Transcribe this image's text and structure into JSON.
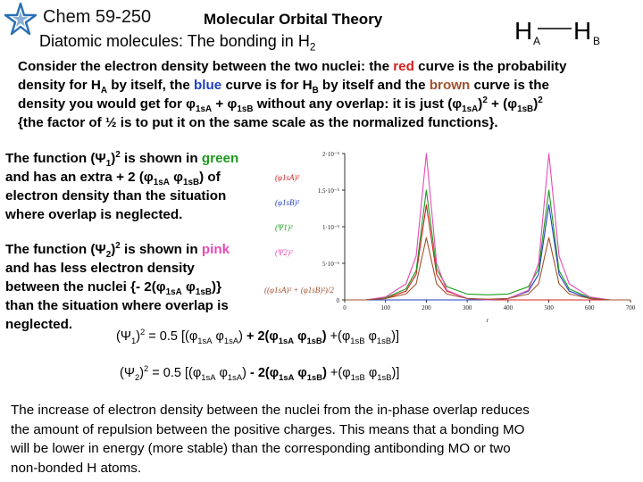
{
  "header": {
    "course": "Chem 59-250",
    "title": "Molecular Orbital Theory",
    "subtitle_main": "Diatomic molecules: The bonding in H",
    "subtitle_sub": "2",
    "hh_left": "H",
    "hh_left_sub": "A",
    "hh_right": "H",
    "hh_right_sub": "B"
  },
  "intro": {
    "l1a": "Consider the electron density between the two nuclei:  the ",
    "l1b": "red",
    "l1c": " curve is the probability",
    "l2a": "density for H",
    "l2b": "A",
    "l2c": " by itself, the ",
    "l2d": "blue",
    "l2e": " curve is for H",
    "l2f": "B",
    "l2g": " by itself and the ",
    "l2h": "brown",
    "l2i": " curve is the",
    "l3a": "density you would get for ",
    "l3b": "1sA",
    "l3c": " + ",
    "l3d": "1sB",
    "l3e": " without any overlap:  it is just (",
    "l3f": "1sA",
    "l3g": ")",
    "l3h": "2",
    "l3i": " + (",
    "l3j": "1sB",
    "l3k": ")",
    "l3l": "2",
    "l4": "{the factor of ½ is to put it on the same scale as the normalized functions}."
  },
  "psi1_text": {
    "l1a": "The function (",
    "l1b": "1",
    "l1c": ")",
    "l1d": "2",
    "l1e": " is shown in ",
    "l1f": "green",
    "l2a": "and has an extra + 2 (",
    "l2b": "1sA",
    "l2c": " ",
    "l2d": "1sB",
    "l2e": ") of",
    "l3": "electron density than the situation",
    "l4": "where overlap is neglected."
  },
  "psi2_text": {
    "l1a": "The function (",
    "l1b": "2",
    "l1c": ")",
    "l1d": "2",
    "l1e": " is shown in ",
    "l1f": "pink",
    "l2": "and has less electron density",
    "l3a": "between the nuclei {- 2(",
    "l3b": "1sA",
    "l3c": " ",
    "l3d": "1sB",
    "l3e": ")}",
    "l4": "than the situation where overlap is",
    "l5": "neglected."
  },
  "equations": {
    "eq1": {
      "a": "(",
      "b": "1",
      "c": ")",
      "d": "2",
      "e": " = 0.5 [(",
      "f": "1sA",
      "g": " ",
      "h": "1sA",
      "i": ") ",
      "j": "+ 2(",
      "k": "1sA",
      "l": " ",
      "m": "1sB",
      "n": ") ",
      "o": "+(",
      "p": "1sB",
      "q": " ",
      "r": "1sB",
      "s": ")]"
    },
    "eq2": {
      "a": "(",
      "b": "2",
      "c": ")",
      "d": "2",
      "e": " = 0.5 [(",
      "f": "1sA",
      "g": " ",
      "h": "1sA",
      "i": ") ",
      "j": "- 2(",
      "k": "1sA",
      "l": " ",
      "m": "1sB",
      "n": ") ",
      "o": "+(",
      "p": "1sB",
      "q": " ",
      "r": "1sB",
      "s": ")]"
    }
  },
  "conclusion": [
    "The increase of electron density between the nuclei from the in-phase overlap reduces",
    "the amount of repulsion between the positive charges.  This means that a bonding MO",
    "will be lower in energy (more stable) than the corresponding antibonding MO or two",
    "non-bonded H atoms."
  ],
  "colors": {
    "red": "#d42020",
    "blue": "#1f3fbf",
    "brown": "#a0522d",
    "green": "#1e9a1e",
    "pink": "#e54bb5"
  },
  "chart_data": {
    "type": "line",
    "title": "",
    "xlabel": "r",
    "ylabel": "",
    "xlim": [
      0,
      700
    ],
    "ylim": [
      0,
      2e-05
    ],
    "x_ticks": [
      "0",
      "100",
      "200",
      "300",
      "400",
      "500",
      "600",
      "700"
    ],
    "y_ticks": [
      {
        "value": 2e-05,
        "label": "2·10⁻⁵"
      },
      {
        "value": 1.5e-05,
        "label": "1.5·10⁻⁵"
      },
      {
        "value": 1e-05,
        "label": "1·10⁻⁵"
      },
      {
        "value": 5e-06,
        "label": "5·10⁻⁶"
      },
      {
        "value": 0,
        "label": "0"
      }
    ],
    "nucleus_A_x": 200,
    "nucleus_B_x": 500,
    "grid": false,
    "legend_position": "left",
    "legend_labels": [
      "(φ1sA)²",
      "(φ1sB)²",
      "(Ψ1)²",
      "(Ψ2)²",
      "((φ1sA)² + (φ1sB)²)/2"
    ],
    "series": [
      {
        "name": "(φ1sA)²",
        "color": "red",
        "x": [
          0,
          50,
          100,
          150,
          175,
          200,
          225,
          250,
          300,
          350,
          400,
          450,
          500,
          550,
          600,
          650,
          700
        ],
        "y": [
          0.0,
          0.0,
          2e-07,
          1.2e-06,
          3.5e-06,
          1.3e-05,
          3.5e-06,
          1.2e-06,
          2e-07,
          0.0,
          0.0,
          0.0,
          0.0,
          0.0,
          0.0,
          0.0,
          0.0
        ]
      },
      {
        "name": "(φ1sB)²",
        "color": "blue",
        "x": [
          0,
          50,
          100,
          150,
          200,
          250,
          300,
          350,
          400,
          450,
          475,
          500,
          525,
          550,
          600,
          650,
          700
        ],
        "y": [
          0.0,
          0.0,
          0.0,
          0.0,
          0.0,
          0.0,
          0.0,
          0.0,
          2e-07,
          1.2e-06,
          3.5e-06,
          1.3e-05,
          3.5e-06,
          1.2e-06,
          2e-07,
          0.0,
          0.0
        ]
      },
      {
        "name": "(Ψ1)²",
        "color": "green",
        "x": [
          0,
          50,
          100,
          150,
          175,
          200,
          225,
          250,
          300,
          350,
          400,
          450,
          475,
          500,
          525,
          550,
          600,
          650,
          700
        ],
        "y": [
          0.0,
          0.0,
          3e-07,
          1.5e-06,
          4e-06,
          1.5e-05,
          4.2e-06,
          1.8e-06,
          8e-07,
          7e-07,
          8e-07,
          1.8e-06,
          4.2e-06,
          1.5e-05,
          4e-06,
          1.5e-06,
          3e-07,
          0.0,
          0.0
        ]
      },
      {
        "name": "(Ψ2)²",
        "color": "pink",
        "x": [
          0,
          50,
          100,
          150,
          175,
          200,
          225,
          250,
          300,
          350,
          400,
          450,
          475,
          500,
          525,
          550,
          600,
          650,
          700
        ],
        "y": [
          0.0,
          0.0,
          4e-07,
          2.2e-06,
          6e-06,
          2e-05,
          5e-06,
          1.3e-06,
          2e-07,
          0.0,
          2e-07,
          1.3e-06,
          5e-06,
          2e-05,
          6e-06,
          2.2e-06,
          4e-07,
          0.0,
          0.0
        ]
      },
      {
        "name": "((φ1sA)² + (φ1sB)²)/2",
        "color": "brown",
        "x": [
          0,
          50,
          100,
          150,
          175,
          200,
          225,
          250,
          300,
          350,
          400,
          450,
          475,
          500,
          525,
          550,
          600,
          650,
          700
        ],
        "y": [
          0.0,
          0.0,
          2e-07,
          8e-07,
          2.2e-06,
          8.5e-06,
          2.2e-06,
          8e-07,
          2e-07,
          1e-07,
          2e-07,
          8e-07,
          2.2e-06,
          8.5e-06,
          2.2e-06,
          8e-07,
          2e-07,
          0.0,
          0.0
        ]
      }
    ]
  }
}
